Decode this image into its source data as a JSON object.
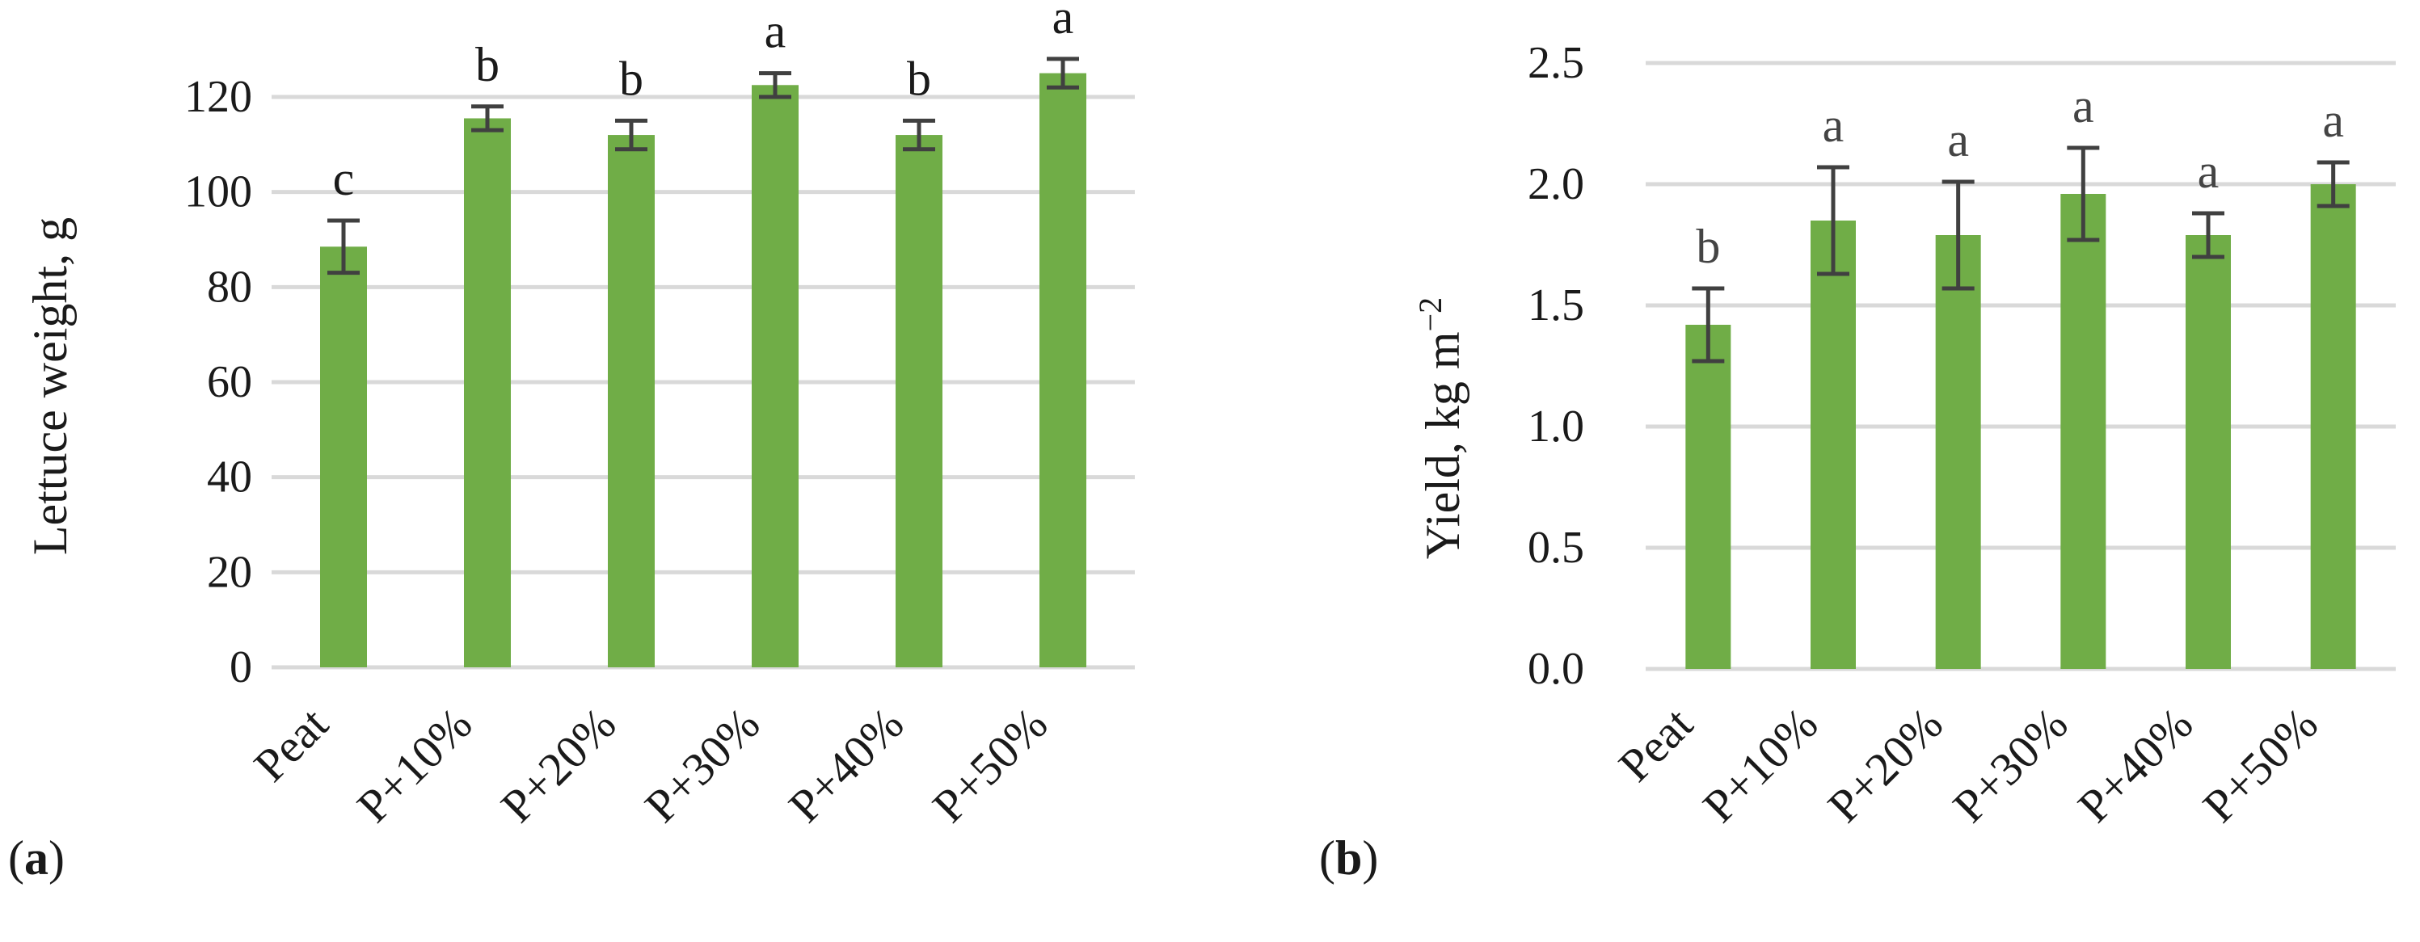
{
  "chart_data": [
    {
      "type": "bar",
      "panel_label": "a",
      "ylabel": "Lettuce weight, g",
      "ylim": [
        0,
        120
      ],
      "yticks": [
        0,
        20,
        40,
        60,
        80,
        100,
        120
      ],
      "ytick_labels": [
        "0",
        "20",
        "40",
        "60",
        "80",
        "100",
        "120"
      ],
      "categories": [
        "Peat",
        "P+10%",
        "P+20%",
        "P+30%",
        "P+40%",
        "P+50%"
      ],
      "values": [
        88.5,
        115.5,
        112,
        122.5,
        112,
        125
      ],
      "error": [
        5.5,
        2.5,
        3,
        2.5,
        3,
        3
      ],
      "letters": [
        "c",
        "b",
        "b",
        "a",
        "b",
        "a"
      ],
      "bar_color": "#70ad47",
      "error_color": "#404040",
      "grid": true
    },
    {
      "type": "bar",
      "panel_label": "b",
      "ylabel": "Yield, kg m",
      "ylabel_superscript": "−2",
      "ylim": [
        0,
        2.5
      ],
      "yticks": [
        0,
        0.5,
        1.0,
        1.5,
        2.0,
        2.5
      ],
      "ytick_labels": [
        "0.0",
        "0.5",
        "1.0",
        "1.5",
        "2.0",
        "2.5"
      ],
      "categories": [
        "Peat",
        "P+10%",
        "P+20%",
        "P+30%",
        "P+40%",
        "P+50%"
      ],
      "values": [
        1.42,
        1.85,
        1.79,
        1.96,
        1.79,
        2.0
      ],
      "error": [
        0.15,
        0.22,
        0.22,
        0.19,
        0.09,
        0.09
      ],
      "letters": [
        "b",
        "a",
        "a",
        "a",
        "a",
        "a"
      ],
      "bar_color": "#70ad47",
      "error_color": "#404040",
      "grid": true
    }
  ]
}
